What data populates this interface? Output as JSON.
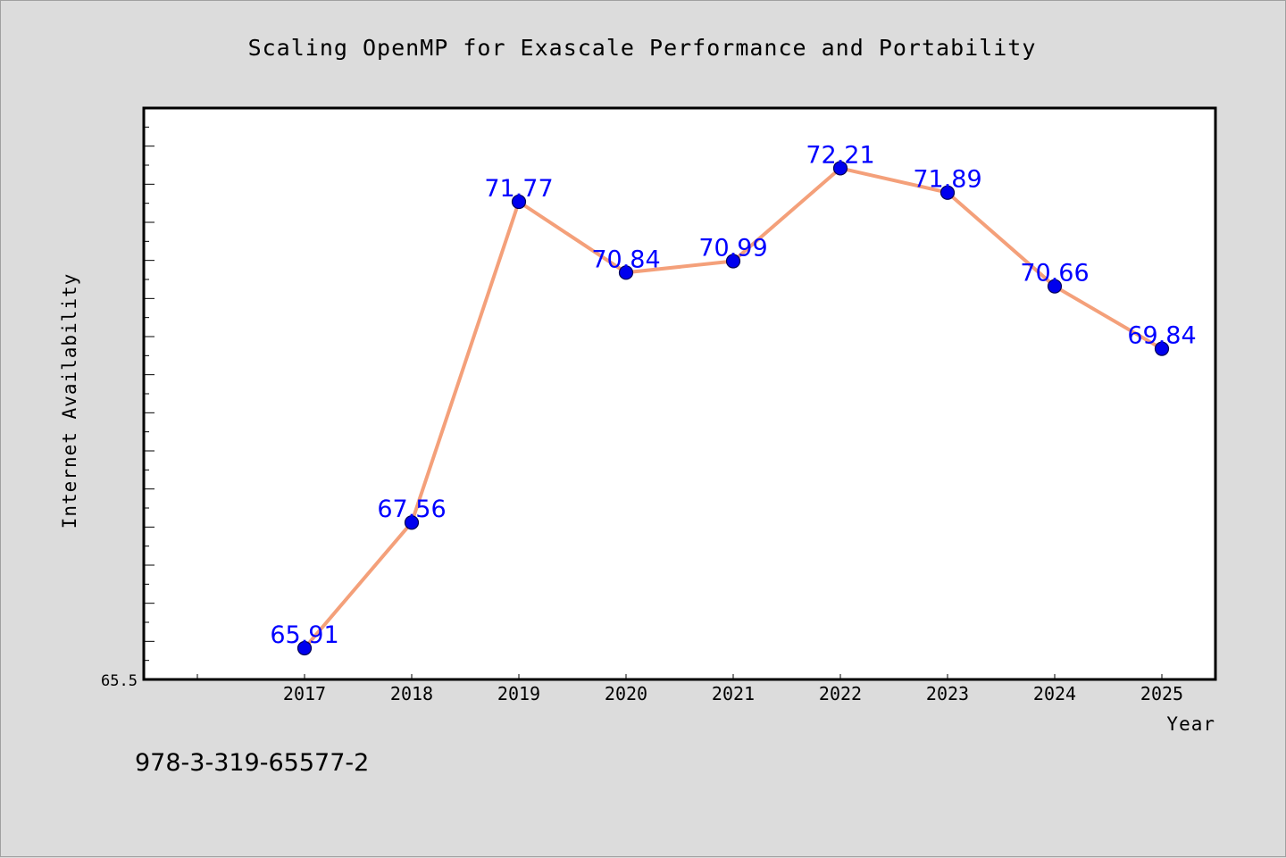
{
  "chart_data": {
    "type": "line",
    "title": "Scaling OpenMP for Exascale Performance and Portability",
    "xlabel": "Year",
    "ylabel": "Internet Availability",
    "categories": [
      "2017",
      "2018",
      "2019",
      "2020",
      "2021",
      "2022",
      "2023",
      "2024",
      "2025"
    ],
    "series": [
      {
        "values": [
          65.91,
          67.56,
          71.77,
          70.84,
          70.99,
          72.21,
          71.89,
          70.66,
          69.84
        ],
        "labels": [
          "65.91",
          "67.56",
          "71.77",
          "70.84",
          "70.99",
          "72.21",
          "71.89",
          "70.66",
          "69.84"
        ]
      }
    ],
    "ylim": [
      65.5,
      73.0
    ],
    "y_tick_labels": [
      "65.5"
    ],
    "grid": false,
    "legend": "none",
    "colors": {
      "line": "#f4a07a",
      "marker": "#0000ee",
      "marker_edge": "#000055",
      "data_label": "#0000ff",
      "plot_background": "#ffffff",
      "page_background": "#dcdcdc"
    }
  },
  "footer": {
    "text": "978-3-319-65577-2"
  }
}
